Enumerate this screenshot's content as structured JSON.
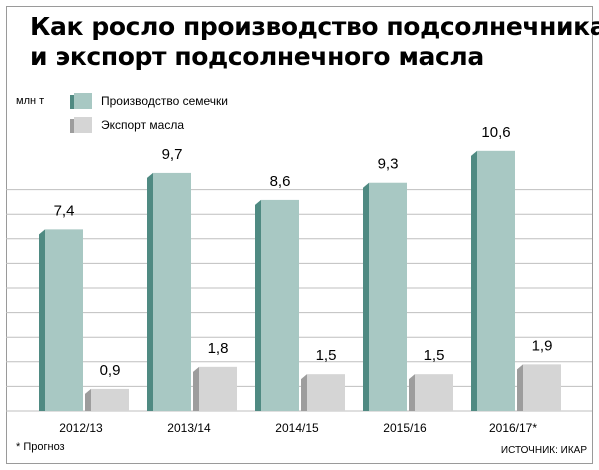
{
  "title_lines": [
    "Как росло производство подсолнечника",
    "и экспорт подсолнечного масла"
  ],
  "unit_label": "млн т",
  "footnote": "* Прогноз",
  "source": "ИСТОЧНИК: ИКАР",
  "colors": {
    "production_face": "#a8c8c3",
    "production_side": "#4f8a82",
    "export_face": "#d5d5d5",
    "export_side": "#9d9d9d",
    "grid": "#bfbfbf"
  },
  "chart_data": {
    "type": "bar",
    "categories": [
      "2012/13",
      "2013/14",
      "2014/15",
      "2015/16",
      "2016/17*"
    ],
    "series": [
      {
        "name": "Производство семечки",
        "values": [
          7.4,
          9.7,
          8.6,
          9.3,
          10.6
        ],
        "labels": [
          "7,4",
          "9,7",
          "8,6",
          "9,3",
          "10,6"
        ]
      },
      {
        "name": "Экспорт масла",
        "values": [
          0.9,
          1.8,
          1.5,
          1.5,
          1.9
        ],
        "labels": [
          "0,9",
          "1,8",
          "1,5",
          "1,5",
          "1,9"
        ]
      }
    ],
    "ylim": [
      0,
      11
    ],
    "grid": true,
    "legend_position": "top-left"
  }
}
